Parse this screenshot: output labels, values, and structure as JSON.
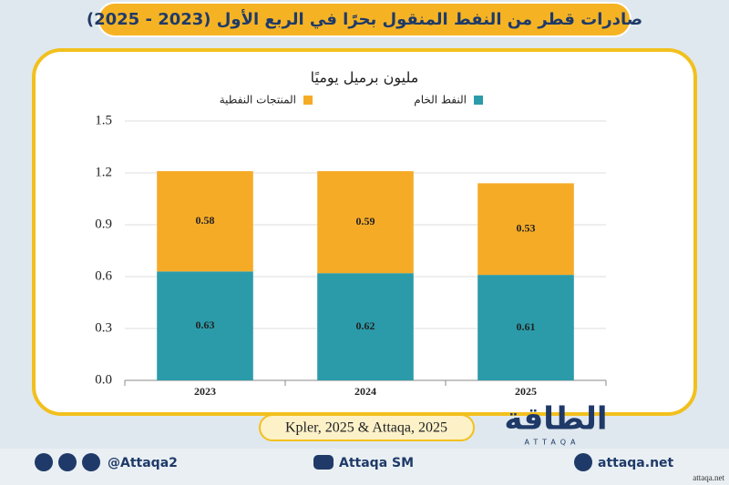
{
  "chart_data": {
    "type": "stacked_bar",
    "title": "صادرات قطر من النفط المنقول بحرًا في الربع الأول (2023 - 2025)",
    "y_label": "مليون برميل يوميًا",
    "categories": [
      "2023",
      "2024",
      "2025"
    ],
    "series": [
      {
        "name": "النفط الخام",
        "color": "#2b9ba9",
        "values": [
          0.63,
          0.62,
          0.61
        ]
      },
      {
        "name": "المنتجات النفطية",
        "color": "#f6ab27",
        "values": [
          0.58,
          0.59,
          0.53
        ]
      }
    ],
    "ylim": [
      0,
      1.5
    ],
    "yticks": [
      {
        "value": 0,
        "label": "0.0"
      },
      0.3,
      0.6,
      0.9,
      1.2,
      1.5
    ],
    "grid": true,
    "source": "Kpler, 2025 & Attaqa, 2025"
  },
  "logo": {
    "text": "الطاقة",
    "sub": "ATTAQA"
  },
  "footer": {
    "social": "@Attaqa2",
    "youtube": "Attaqa SM",
    "website": "attaqa.net",
    "watermark": "attaqa.net"
  }
}
